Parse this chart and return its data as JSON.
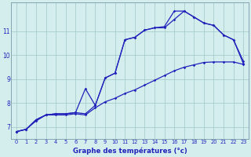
{
  "xlabel": "Graphe des températures (°c)",
  "background_color": "#d4eeee",
  "grid_color": "#a0c8c8",
  "line_color": "#2222bb",
  "xlim": [
    -0.5,
    23.5
  ],
  "ylim": [
    6.5,
    12.2
  ],
  "yticks": [
    7,
    8,
    9,
    10,
    11
  ],
  "xticks": [
    0,
    1,
    2,
    3,
    4,
    5,
    6,
    7,
    8,
    9,
    10,
    11,
    12,
    13,
    14,
    15,
    16,
    17,
    18,
    19,
    20,
    21,
    22,
    23
  ],
  "hours": [
    0,
    1,
    2,
    3,
    4,
    5,
    6,
    7,
    8,
    9,
    10,
    11,
    12,
    13,
    14,
    15,
    16,
    17,
    18,
    19,
    20,
    21,
    22,
    23
  ],
  "line_upper": [
    6.8,
    6.9,
    7.3,
    7.5,
    7.55,
    7.55,
    7.6,
    7.55,
    7.9,
    9.05,
    9.25,
    10.65,
    10.75,
    11.05,
    11.15,
    11.15,
    11.5,
    11.85,
    11.6,
    11.35,
    11.25,
    10.85,
    10.65,
    9.65
  ],
  "line_mid": [
    6.8,
    6.9,
    7.3,
    7.5,
    7.55,
    7.55,
    7.6,
    8.6,
    7.9,
    9.05,
    9.25,
    10.65,
    10.75,
    11.05,
    11.15,
    11.2,
    11.85,
    11.85,
    11.6,
    11.35,
    11.25,
    10.85,
    10.65,
    9.75
  ],
  "line_lower": [
    6.8,
    6.9,
    7.25,
    7.5,
    7.5,
    7.5,
    7.55,
    7.5,
    7.8,
    8.05,
    8.2,
    8.4,
    8.55,
    8.75,
    8.95,
    9.15,
    9.35,
    9.5,
    9.6,
    9.7,
    9.72,
    9.72,
    9.72,
    9.62
  ]
}
